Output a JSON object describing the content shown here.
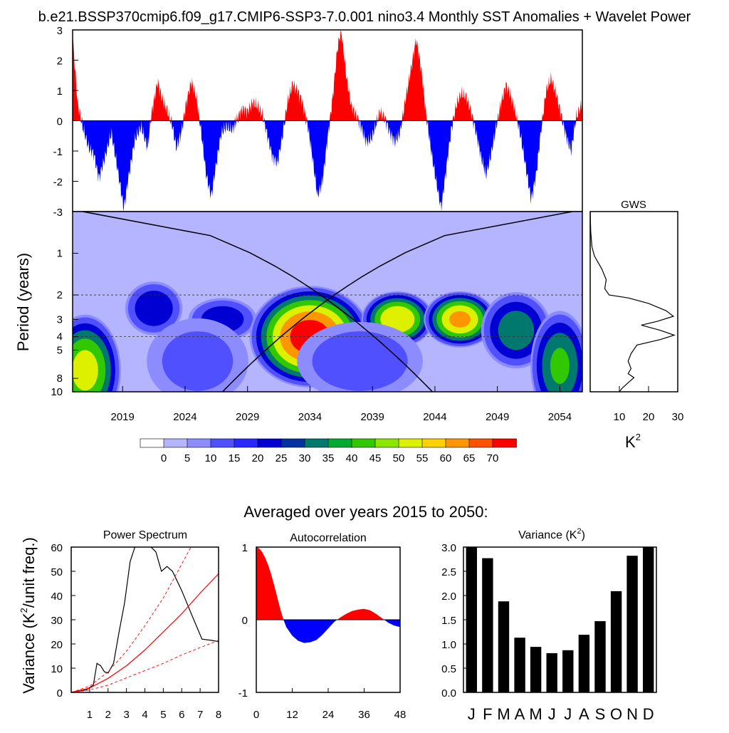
{
  "title": "b.e21.BSSP370cmip6.f09_g17.CMIP6-SSP3-7.0.001 nino3.4 Monthly SST Anomalies + Wavelet Power",
  "chart_data": [
    {
      "id": "anomaly",
      "type": "area",
      "ylim": [
        -3,
        3
      ],
      "yticks": [
        "3",
        "2",
        "1",
        "0",
        "-1",
        "-2",
        "-3"
      ],
      "xlim": [
        2015,
        2055.8
      ],
      "colors": {
        "positive": "#ff0000",
        "negative": "#0000ff"
      },
      "series_knots": [
        [
          2015.0,
          2.8
        ],
        [
          2015.4,
          0.6
        ],
        [
          2015.8,
          -0.2
        ],
        [
          2016.3,
          -0.9
        ],
        [
          2016.7,
          -1.1
        ],
        [
          2017.1,
          -1.9
        ],
        [
          2017.6,
          -1.2
        ],
        [
          2018.1,
          -0.4
        ],
        [
          2018.6,
          -1.6
        ],
        [
          2019.1,
          -2.9
        ],
        [
          2019.5,
          -1.8
        ],
        [
          2020.0,
          -0.6
        ],
        [
          2020.5,
          -0.2
        ],
        [
          2021.0,
          -0.9
        ],
        [
          2021.3,
          0.2
        ],
        [
          2021.8,
          1.3
        ],
        [
          2022.2,
          0.7
        ],
        [
          2022.6,
          0.3
        ],
        [
          2023.0,
          -0.2
        ],
        [
          2023.3,
          -0.9
        ],
        [
          2023.7,
          -0.4
        ],
        [
          2024.1,
          0.6
        ],
        [
          2024.5,
          1.3
        ],
        [
          2024.9,
          0.8
        ],
        [
          2025.3,
          -0.4
        ],
        [
          2025.7,
          -1.8
        ],
        [
          2026.1,
          -2.5
        ],
        [
          2026.5,
          -1.4
        ],
        [
          2026.9,
          -0.4
        ],
        [
          2027.3,
          -0.2
        ],
        [
          2027.8,
          -0.3
        ],
        [
          2028.2,
          0.1
        ],
        [
          2028.6,
          0.4
        ],
        [
          2029.0,
          0.3
        ],
        [
          2029.4,
          0.6
        ],
        [
          2029.8,
          0.5
        ],
        [
          2030.2,
          0.2
        ],
        [
          2030.6,
          -0.5
        ],
        [
          2031.0,
          -1.2
        ],
        [
          2031.4,
          -1.4
        ],
        [
          2031.8,
          -0.5
        ],
        [
          2032.2,
          0.6
        ],
        [
          2032.6,
          1.2
        ],
        [
          2033.0,
          1.0
        ],
        [
          2033.4,
          0.6
        ],
        [
          2033.8,
          -0.1
        ],
        [
          2034.2,
          -1.2
        ],
        [
          2034.6,
          -2.5
        ],
        [
          2035.0,
          -2.0
        ],
        [
          2035.4,
          -0.6
        ],
        [
          2035.8,
          0.7
        ],
        [
          2036.2,
          2.4
        ],
        [
          2036.5,
          3.0
        ],
        [
          2036.9,
          1.5
        ],
        [
          2037.3,
          0.5
        ],
        [
          2037.7,
          0.2
        ],
        [
          2038.1,
          -0.2
        ],
        [
          2038.5,
          -0.7
        ],
        [
          2038.9,
          -0.6
        ],
        [
          2039.3,
          -0.1
        ],
        [
          2039.6,
          0.3
        ],
        [
          2040.0,
          0.1
        ],
        [
          2040.4,
          -0.4
        ],
        [
          2040.8,
          -0.7
        ],
        [
          2041.2,
          -0.4
        ],
        [
          2041.6,
          0.6
        ],
        [
          2042.0,
          1.5
        ],
        [
          2042.5,
          2.7
        ],
        [
          2042.9,
          1.7
        ],
        [
          2043.3,
          0.2
        ],
        [
          2043.7,
          -1.0
        ],
        [
          2044.1,
          -2.0
        ],
        [
          2044.5,
          -2.9
        ],
        [
          2044.9,
          -1.6
        ],
        [
          2045.3,
          -0.3
        ],
        [
          2045.7,
          0.5
        ],
        [
          2046.1,
          0.9
        ],
        [
          2046.5,
          0.8
        ],
        [
          2046.9,
          0.3
        ],
        [
          2047.3,
          -0.4
        ],
        [
          2047.7,
          -1.2
        ],
        [
          2048.1,
          -1.8
        ],
        [
          2048.5,
          -1.1
        ],
        [
          2048.9,
          -0.2
        ],
        [
          2049.3,
          0.6
        ],
        [
          2049.7,
          1.2
        ],
        [
          2050.1,
          0.8
        ],
        [
          2050.5,
          0.2
        ],
        [
          2050.9,
          -0.6
        ],
        [
          2051.3,
          -1.6
        ],
        [
          2051.7,
          -2.6
        ],
        [
          2052.1,
          -1.8
        ],
        [
          2052.5,
          -0.3
        ],
        [
          2052.9,
          1.0
        ],
        [
          2053.3,
          1.4
        ],
        [
          2053.7,
          0.9
        ],
        [
          2054.1,
          0.2
        ],
        [
          2054.5,
          -0.5
        ],
        [
          2054.9,
          -1.0
        ],
        [
          2055.3,
          0.1
        ],
        [
          2055.8,
          0.6
        ]
      ]
    },
    {
      "id": "wavelet",
      "type": "heatmap",
      "ylabel": "Period (years)",
      "yticks": [
        "1",
        "2",
        "3",
        "4",
        "5",
        "8",
        "10"
      ],
      "xticks": [
        "2019",
        "2024",
        "2029",
        "2034",
        "2039",
        "2044",
        "2049",
        "2054"
      ],
      "levels": [
        "0",
        "5",
        "10",
        "15",
        "20",
        "25",
        "30",
        "35",
        "40",
        "45",
        "50",
        "55",
        "60",
        "65",
        "70"
      ],
      "palette": [
        "#ffffff",
        "#b4b4ff",
        "#8c8cff",
        "#5050ff",
        "#2828ff",
        "#0000d2",
        "#0032a0",
        "#00786e",
        "#00aa32",
        "#32c800",
        "#8ce600",
        "#dcf000",
        "#ffd200",
        "#ff9600",
        "#ff5000",
        "#ff0000"
      ],
      "blobs": [
        [
          2016.0,
          7.0,
          3.0,
          1.0,
          52
        ],
        [
          2021.5,
          2.5,
          2.5,
          0.5,
          28
        ],
        [
          2027.0,
          3.0,
          3.0,
          0.4,
          26
        ],
        [
          2034.0,
          4.0,
          5.0,
          0.9,
          72
        ],
        [
          2041.0,
          3.0,
          3.0,
          0.5,
          58
        ],
        [
          2046.0,
          3.0,
          3.0,
          0.5,
          60
        ],
        [
          2050.5,
          3.6,
          3.0,
          0.7,
          35
        ],
        [
          2054.0,
          6.5,
          2.5,
          1.0,
          40
        ],
        [
          2038.0,
          6.0,
          6.0,
          0.8,
          14
        ],
        [
          2025.0,
          6.0,
          5.0,
          0.9,
          12
        ]
      ],
      "coi_color": "#000000"
    },
    {
      "id": "gws",
      "type": "line",
      "title": "GWS",
      "xlabel": "K",
      "xlabel_sup": "2",
      "xticks": [
        "10",
        "20",
        "30"
      ],
      "xlim": [
        0,
        30
      ],
      "points": [
        [
          0.0,
          0.5
        ],
        [
          0.2,
          0.7
        ],
        [
          0.6,
          0.9
        ],
        [
          1.5,
          1.05
        ],
        [
          4.0,
          1.3
        ],
        [
          5.5,
          1.55
        ],
        [
          5.0,
          1.8
        ],
        [
          6.5,
          2.0
        ],
        [
          13.0,
          2.1
        ],
        [
          20.0,
          2.3
        ],
        [
          26.0,
          2.6
        ],
        [
          28.5,
          2.85
        ],
        [
          23.0,
          3.1
        ],
        [
          17.5,
          3.3
        ],
        [
          24.0,
          3.6
        ],
        [
          28.8,
          3.9
        ],
        [
          24.0,
          4.2
        ],
        [
          16.0,
          4.6
        ],
        [
          14.0,
          5.3
        ],
        [
          13.0,
          6.0
        ],
        [
          14.0,
          6.8
        ],
        [
          13.0,
          7.4
        ],
        [
          15.0,
          7.9
        ],
        [
          13.0,
          8.6
        ],
        [
          11.0,
          9.4
        ],
        [
          10.0,
          10.0
        ]
      ]
    },
    {
      "id": "power-spectrum",
      "type": "line",
      "title": "Power Spectrum",
      "ylabel": "Variance (K",
      "ylabel_sup": "2",
      "ylabel_tail": "/unit freq.)",
      "xticks": [
        "1",
        "2",
        "3",
        "4",
        "5",
        "6",
        "7",
        "8"
      ],
      "yticks": [
        "60",
        "50",
        "40",
        "30",
        "20",
        "10",
        "0"
      ],
      "xlim": [
        0,
        8
      ],
      "ylim": [
        0,
        60
      ],
      "series": [
        {
          "name": "spectrum",
          "color": "#000000",
          "points": [
            [
              0,
              0
            ],
            [
              0.8,
              1
            ],
            [
              1.2,
              3
            ],
            [
              1.4,
              12
            ],
            [
              1.6,
              11
            ],
            [
              1.8,
              8.5
            ],
            [
              2.0,
              8
            ],
            [
              2.3,
              12
            ],
            [
              2.6,
              25
            ],
            [
              2.9,
              37
            ],
            [
              3.2,
              54
            ],
            [
              3.5,
              61
            ],
            [
              3.8,
              62
            ],
            [
              4.2,
              61
            ],
            [
              4.6,
              58
            ],
            [
              4.9,
              50
            ],
            [
              5.2,
              52
            ],
            [
              5.5,
              50
            ],
            [
              6.0,
              42
            ],
            [
              6.6,
              31
            ],
            [
              7.1,
              22
            ],
            [
              7.6,
              21.5
            ],
            [
              8,
              21
            ]
          ]
        },
        {
          "name": "red-noise",
          "color": "#ff0000",
          "points": [
            [
              0,
              0
            ],
            [
              1,
              1.8
            ],
            [
              2,
              5.8
            ],
            [
              3,
              11
            ],
            [
              4,
              17.5
            ],
            [
              5,
              25
            ],
            [
              6,
              32.5
            ],
            [
              7,
              41
            ],
            [
              8,
              49
            ]
          ]
        },
        {
          "name": "upper-ci",
          "color": "#ff0000",
          "dashed": true,
          "points": [
            [
              0,
              0
            ],
            [
              1,
              2.6
            ],
            [
              2,
              8.5
            ],
            [
              3,
              17
            ],
            [
              4,
              27.5
            ],
            [
              5,
              39
            ],
            [
              6,
              53
            ],
            [
              6.5,
              60
            ]
          ]
        },
        {
          "name": "lower-ci",
          "color": "#ff0000",
          "dashed": true,
          "points": [
            [
              0,
              0
            ],
            [
              1,
              1
            ],
            [
              2,
              3
            ],
            [
              3,
              6
            ],
            [
              4,
              9
            ],
            [
              5,
              12
            ],
            [
              6,
              15.5
            ],
            [
              7,
              18.5
            ],
            [
              8,
              21.5
            ]
          ]
        }
      ]
    },
    {
      "id": "autocorrelation",
      "type": "area",
      "title": "Autocorrelation",
      "xticks": [
        "0",
        "12",
        "24",
        "36",
        "48"
      ],
      "yticks": [
        "1",
        "0",
        "-1"
      ],
      "xlim": [
        0,
        48
      ],
      "ylim": [
        -1,
        1
      ],
      "colors": {
        "positive": "#ff0000",
        "negative": "#0000ff"
      },
      "points": [
        [
          0,
          1.0
        ],
        [
          1,
          0.98
        ],
        [
          2,
          0.93
        ],
        [
          3,
          0.85
        ],
        [
          4,
          0.75
        ],
        [
          5,
          0.62
        ],
        [
          6,
          0.47
        ],
        [
          7,
          0.31
        ],
        [
          8,
          0.15
        ],
        [
          9,
          0.01
        ],
        [
          10,
          -0.1
        ],
        [
          12,
          -0.22
        ],
        [
          14,
          -0.29
        ],
        [
          16,
          -0.32
        ],
        [
          18,
          -0.31
        ],
        [
          20,
          -0.28
        ],
        [
          22,
          -0.21
        ],
        [
          24,
          -0.12
        ],
        [
          26,
          -0.03
        ],
        [
          28,
          0.03
        ],
        [
          30,
          0.08
        ],
        [
          32,
          0.12
        ],
        [
          34,
          0.14
        ],
        [
          36,
          0.15
        ],
        [
          38,
          0.13
        ],
        [
          40,
          0.08
        ],
        [
          42,
          0.02
        ],
        [
          44,
          -0.04
        ],
        [
          46,
          -0.08
        ],
        [
          48,
          -0.1
        ]
      ]
    },
    {
      "id": "variance",
      "type": "bar",
      "title": "Variance (K",
      "title_sup": "2",
      "title_tail": ")",
      "categories": [
        "J",
        "F",
        "M",
        "A",
        "M",
        "J",
        "J",
        "A",
        "S",
        "O",
        "N",
        "D"
      ],
      "values": [
        3.0,
        2.77,
        1.88,
        1.13,
        0.94,
        0.81,
        0.87,
        1.19,
        1.47,
        2.09,
        2.82,
        3.0
      ],
      "yticks": [
        "3.0",
        "2.5",
        "2.0",
        "1.5",
        "1.0",
        "0.5",
        "0.0"
      ],
      "ylim": [
        0,
        3
      ]
    }
  ],
  "colorbar": {
    "labels": [
      "0",
      "5",
      "10",
      "15",
      "20",
      "25",
      "30",
      "35",
      "40",
      "45",
      "50",
      "55",
      "60",
      "65",
      "70"
    ]
  },
  "averaged_title": "Averaged over years 2015 to 2050:"
}
